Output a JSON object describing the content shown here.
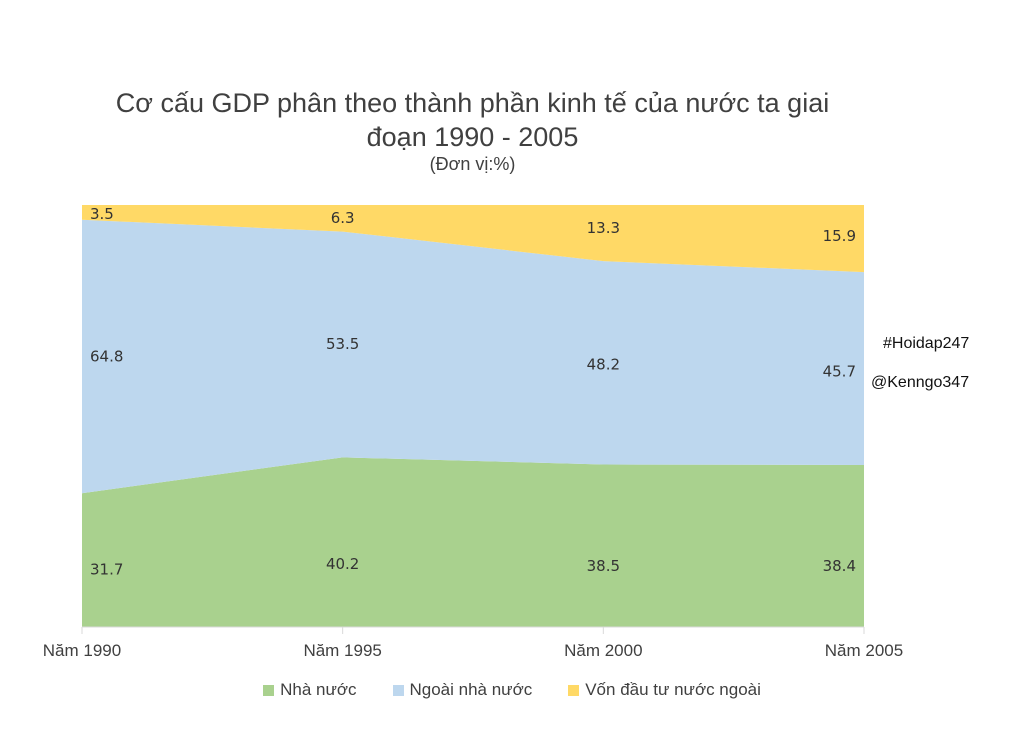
{
  "chart_data": {
    "type": "area",
    "stacked": "percent",
    "title": "Cơ cấu GDP phân theo thành phần kinh tế của nước ta giai đoạn 1990 - 2005",
    "subtitle": "(Đơn vị:%)",
    "categories": [
      "Năm 1990",
      "Năm 1995",
      "Năm 2000",
      "Năm 2005"
    ],
    "series": [
      {
        "name": "Nhà nước",
        "values": [
          31.7,
          40.2,
          38.5,
          38.4
        ],
        "color": "#a9d18e"
      },
      {
        "name": "Ngoài nhà nước",
        "values": [
          64.8,
          53.5,
          48.2,
          45.7
        ],
        "color": "#bdd7ee"
      },
      {
        "name": "Vốn đầu tư nước ngoài",
        "values": [
          3.5,
          6.3,
          13.3,
          15.9
        ],
        "color": "#ffd966"
      }
    ],
    "ylim": [
      0,
      100
    ],
    "grid": false,
    "legend_position": "bottom",
    "annotations": [
      "#Hoidap247",
      "@Kenngo347"
    ]
  }
}
